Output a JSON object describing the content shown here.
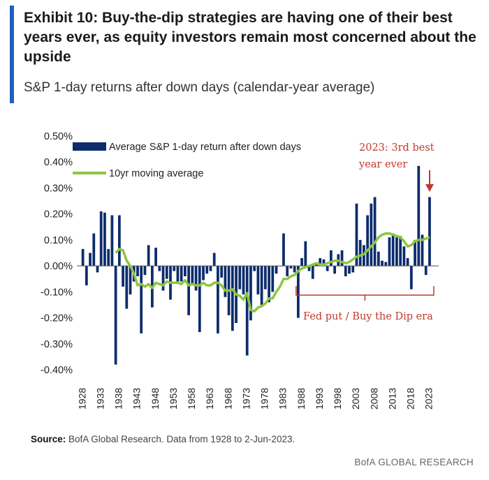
{
  "title": "Exhibit 10: Buy-the-dip strategies are having one of their best years ever, as equity investors remain most concerned about the upside",
  "subtitle": "S&P 1-day returns after down days (calendar-year average)",
  "source_label": "Source:",
  "source_text": "BofA Global Research. Data from 1928 to 2-Jun-2023.",
  "brand": "BofA GLOBAL RESEARCH",
  "colors": {
    "bar": "#0c2c6c",
    "line": "#8dc63f",
    "annotation": "#c0392b",
    "accent": "#1f5fbf"
  },
  "chart_data": {
    "type": "bar",
    "x": [
      1928,
      1929,
      1930,
      1931,
      1932,
      1933,
      1934,
      1935,
      1936,
      1937,
      1938,
      1939,
      1940,
      1941,
      1942,
      1943,
      1944,
      1945,
      1946,
      1947,
      1948,
      1949,
      1950,
      1951,
      1952,
      1953,
      1954,
      1955,
      1956,
      1957,
      1958,
      1959,
      1960,
      1961,
      1962,
      1963,
      1964,
      1965,
      1966,
      1967,
      1968,
      1969,
      1970,
      1971,
      1972,
      1973,
      1974,
      1975,
      1976,
      1977,
      1978,
      1979,
      1980,
      1981,
      1982,
      1983,
      1984,
      1985,
      1986,
      1987,
      1988,
      1989,
      1990,
      1991,
      1992,
      1993,
      1994,
      1995,
      1996,
      1997,
      1998,
      1999,
      2000,
      2001,
      2002,
      2003,
      2004,
      2005,
      2006,
      2007,
      2008,
      2009,
      2010,
      2011,
      2012,
      2013,
      2014,
      2015,
      2016,
      2017,
      2018,
      2019,
      2020,
      2021,
      2022,
      2023
    ],
    "x_tick_labels": [
      "1928",
      "1933",
      "1938",
      "1943",
      "1948",
      "1953",
      "1958",
      "1963",
      "1968",
      "1973",
      "1978",
      "1983",
      "1988",
      "1993",
      "1998",
      "2003",
      "2008",
      "2013",
      "2018",
      "2023"
    ],
    "y_tick_labels": [
      "0.50%",
      "0.40%",
      "0.30%",
      "0.20%",
      "0.10%",
      "0.00%",
      "-0.10%",
      "-0.20%",
      "-0.30%",
      "-0.40%"
    ],
    "ylim": [
      -0.4,
      0.5
    ],
    "xlim": [
      1927.5,
      2025.5
    ],
    "series": [
      {
        "name": "Average S&P 1-day return after down days",
        "kind": "bar",
        "values": [
          0.065,
          -0.075,
          0.05,
          0.125,
          -0.025,
          0.21,
          0.205,
          0.065,
          0.195,
          -0.38,
          0.195,
          -0.08,
          -0.165,
          -0.11,
          -0.06,
          -0.04,
          -0.26,
          -0.035,
          0.08,
          -0.16,
          0.07,
          -0.02,
          -0.095,
          -0.05,
          -0.13,
          -0.02,
          -0.06,
          -0.06,
          -0.04,
          -0.19,
          -0.07,
          -0.095,
          -0.255,
          -0.055,
          -0.03,
          -0.02,
          0.05,
          -0.26,
          -0.045,
          -0.12,
          -0.19,
          -0.25,
          -0.22,
          -0.09,
          -0.11,
          -0.345,
          -0.21,
          -0.02,
          -0.11,
          -0.15,
          -0.09,
          -0.14,
          -0.1,
          -0.03,
          0.0,
          0.125,
          -0.04,
          -0.01,
          -0.025,
          -0.2,
          0.03,
          0.095,
          -0.02,
          -0.05,
          0.01,
          0.03,
          0.025,
          -0.02,
          0.06,
          -0.03,
          0.045,
          0.06,
          -0.04,
          -0.03,
          -0.025,
          0.24,
          0.1,
          0.08,
          0.195,
          0.24,
          0.265,
          0.055,
          0.02,
          0.015,
          0.11,
          0.125,
          0.11,
          0.115,
          0.075,
          0.03,
          -0.09,
          0.1,
          0.385,
          0.12,
          -0.035,
          0.265
        ]
      },
      {
        "name": "10yr moving average",
        "kind": "line",
        "x": [
          1937,
          1938,
          1939,
          1940,
          1941,
          1942,
          1943,
          1944,
          1945,
          1946,
          1947,
          1948,
          1949,
          1950,
          1951,
          1952,
          1953,
          1954,
          1955,
          1956,
          1957,
          1958,
          1959,
          1960,
          1961,
          1962,
          1963,
          1964,
          1965,
          1966,
          1967,
          1968,
          1969,
          1970,
          1971,
          1972,
          1973,
          1974,
          1975,
          1976,
          1977,
          1978,
          1979,
          1980,
          1981,
          1982,
          1983,
          1984,
          1985,
          1986,
          1987,
          1988,
          1989,
          1990,
          1991,
          1992,
          1993,
          1994,
          1995,
          1996,
          1997,
          1998,
          1999,
          2000,
          2001,
          2002,
          2003,
          2004,
          2005,
          2006,
          2007,
          2008,
          2009,
          2010,
          2011,
          2012,
          2013,
          2014,
          2015,
          2016,
          2017,
          2018,
          2019,
          2020,
          2021,
          2022,
          2023
        ],
        "values": [
          0.05,
          0.065,
          0.06,
          0.02,
          0.0,
          -0.03,
          -0.075,
          -0.07,
          -0.08,
          -0.07,
          -0.085,
          -0.065,
          -0.07,
          -0.075,
          -0.06,
          -0.065,
          -0.065,
          -0.065,
          -0.07,
          -0.055,
          -0.075,
          -0.07,
          -0.075,
          -0.075,
          -0.065,
          -0.075,
          -0.075,
          -0.065,
          -0.065,
          -0.075,
          -0.095,
          -0.095,
          -0.09,
          -0.11,
          -0.115,
          -0.13,
          -0.105,
          -0.17,
          -0.175,
          -0.16,
          -0.155,
          -0.145,
          -0.125,
          -0.125,
          -0.1,
          -0.08,
          -0.05,
          -0.05,
          -0.04,
          -0.035,
          -0.02,
          -0.01,
          -0.005,
          0.0,
          0.005,
          0.01,
          0.005,
          0.005,
          0.01,
          0.015,
          0.02,
          0.02,
          0.015,
          0.01,
          0.015,
          0.025,
          0.035,
          0.04,
          0.045,
          0.06,
          0.075,
          0.09,
          0.11,
          0.12,
          0.125,
          0.125,
          0.12,
          0.115,
          0.11,
          0.095,
          0.075,
          0.08,
          0.095,
          0.1,
          0.1,
          0.105,
          0.11
        ]
      }
    ],
    "legend": {
      "placement": "top-left",
      "entries": [
        "Average S&P 1-day return after down days",
        "10yr moving average"
      ]
    },
    "annotations": {
      "best_year": [
        "2023: 3rd best",
        "year ever"
      ],
      "era": "Fed put / Buy the Dip era",
      "era_span": [
        1987,
        2023
      ]
    },
    "grid": false
  }
}
